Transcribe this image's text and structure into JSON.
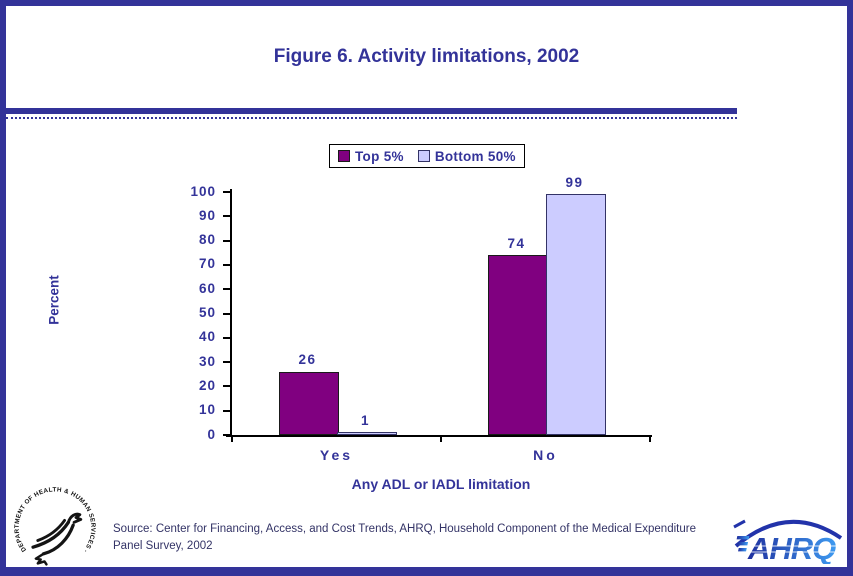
{
  "page": {
    "title": "Figure 6. Activity limitations, 2002"
  },
  "chart_data": {
    "type": "bar",
    "title": "Figure 6. Activity limitations, 2002",
    "categories": [
      "Yes",
      "No"
    ],
    "series": [
      {
        "name": "Top 5%",
        "color": "#800080",
        "values": [
          26,
          74
        ]
      },
      {
        "name": "Bottom 50%",
        "color": "#ccccff",
        "values": [
          1,
          99
        ]
      }
    ],
    "xlabel": "Any ADL or IADL limitation",
    "ylabel": "Percent",
    "ylim": [
      0,
      100
    ],
    "yticks": [
      0,
      10,
      20,
      30,
      40,
      50,
      60,
      70,
      80,
      90,
      100
    ],
    "grid": false,
    "legend_position": "top-center",
    "bar_value_labels": true
  },
  "footer": {
    "source": "Source: Center for Financing, Access, and Cost Trends, AHRQ, Household Component of the Medical Expenditure Panel Survey, 2002"
  },
  "logos": {
    "hhs_seal_text": "DEPARTMENT OF HEALTH & HUMAN SERVICES · USA",
    "ahrq_text": "AHRQ"
  },
  "colors": {
    "accent": "#333399",
    "text": "#333399",
    "axis": "#000000",
    "series_top5": "#800080",
    "series_bottom50": "#ccccff"
  }
}
